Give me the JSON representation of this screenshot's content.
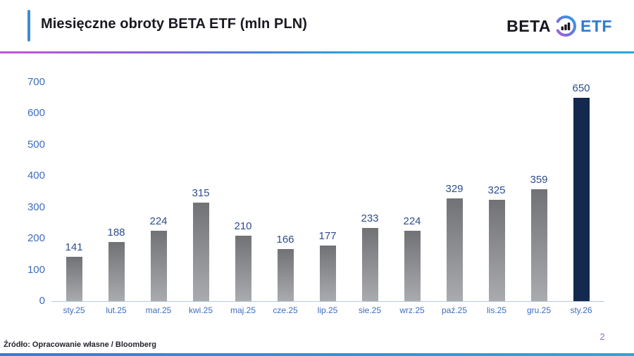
{
  "header": {
    "title": "Miesięczne obroty BETA ETF (mln PLN)",
    "logo": {
      "beta": "BETA",
      "etf": "ETF",
      "icon": "bar-chart-ring-icon"
    }
  },
  "chart_data": {
    "type": "bar",
    "title": "Miesięczne obroty BETA ETF (mln PLN)",
    "categories": [
      "sty.25",
      "lut.25",
      "mar.25",
      "kwi.25",
      "maj.25",
      "cze.25",
      "lip.25",
      "sie.25",
      "wrz.25",
      "paź.25",
      "lis.25",
      "gru.25",
      "sty.26"
    ],
    "values": [
      141,
      188,
      224,
      315,
      210,
      166,
      177,
      233,
      224,
      329,
      325,
      359,
      650
    ],
    "highlight_index": 12,
    "xlabel": "",
    "ylabel": "",
    "ylim": [
      0,
      700
    ],
    "yticks": [
      0,
      100,
      200,
      300,
      400,
      500,
      600,
      700
    ],
    "grid": false,
    "legend": false,
    "data_labels": true
  },
  "footer": {
    "source": "Źródło: Opracowanie własne / Bloomberg",
    "page_number": "2"
  },
  "colors": {
    "title_accent": "#3e8bd9",
    "divider_gradient_start": "#c055d9",
    "divider_gradient_end": "#2aa5d8",
    "bar_gradient_top": "#707275",
    "bar_gradient_bottom": "#a9abae",
    "bar_highlight": "#13294d",
    "axis_text": "#3e6cc0",
    "value_label_text": "#2d4d8e",
    "logo_beta_text": "#16161f",
    "logo_etf_text": "#2e7ad6",
    "page_number_text": "#9d6fc8"
  }
}
